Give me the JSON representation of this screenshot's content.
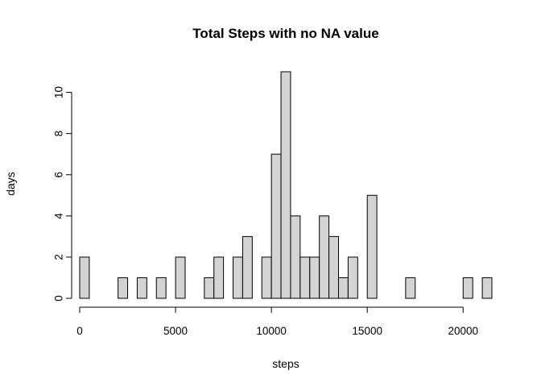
{
  "chart_data": {
    "type": "bar",
    "title": "Total Steps with no NA value",
    "xlabel": "steps",
    "ylabel": "days",
    "bin_width": 500,
    "bin_start": 0,
    "values": [
      2,
      0,
      0,
      0,
      1,
      0,
      1,
      0,
      1,
      0,
      2,
      0,
      0,
      1,
      2,
      0,
      2,
      3,
      0,
      2,
      7,
      11,
      4,
      2,
      2,
      4,
      3,
      1,
      2,
      0,
      5,
      0,
      0,
      0,
      1,
      0,
      0,
      0,
      0,
      0,
      1,
      0,
      1
    ],
    "xlim": [
      0,
      21500
    ],
    "ylim": [
      0,
      11
    ],
    "xticks": [
      0,
      5000,
      10000,
      15000,
      20000
    ],
    "yticks": [
      0,
      2,
      4,
      6,
      8,
      10
    ],
    "grid": false,
    "bar_fill": "#d3d3d3",
    "bar_stroke": "#000000"
  }
}
